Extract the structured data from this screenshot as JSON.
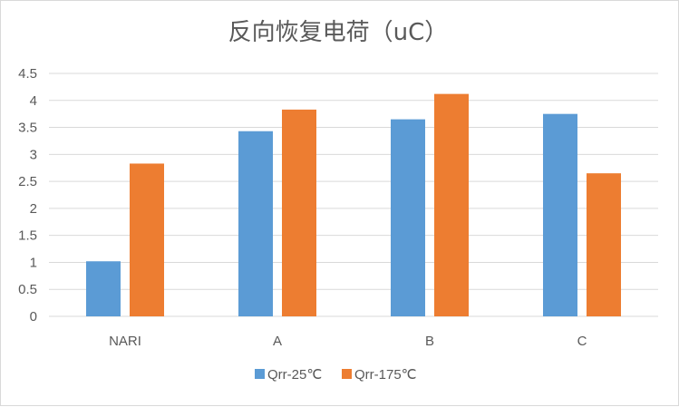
{
  "chart_data": {
    "type": "bar",
    "title": "反向恢复电荷（uC）",
    "categories": [
      "NARI",
      "A",
      "B",
      "C"
    ],
    "series": [
      {
        "name": "Qrr-25℃",
        "values": [
          1.02,
          3.43,
          3.65,
          3.75
        ],
        "color": "#5b9bd5"
      },
      {
        "name": "Qrr-175℃",
        "values": [
          2.83,
          3.83,
          4.12,
          2.65
        ],
        "color": "#ed7d31"
      }
    ],
    "yticks": [
      "0",
      "0.5",
      "1",
      "1.5",
      "2",
      "2.5",
      "3",
      "3.5",
      "4",
      "4.5"
    ],
    "ylim": [
      0,
      4.5
    ],
    "grid": true,
    "legend_position": "bottom"
  }
}
